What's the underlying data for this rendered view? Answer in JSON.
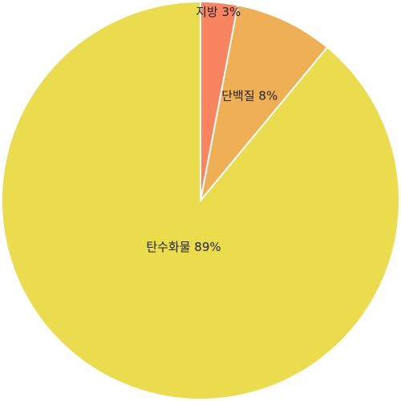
{
  "chart_data": {
    "type": "pie",
    "slices": [
      {
        "label": "탄수화물",
        "value": 89,
        "display": "탄수화물 89%",
        "color": "#ebdc4e"
      },
      {
        "label": "단백질",
        "value": 8,
        "display": "단백질 8%",
        "color": "#efb055"
      },
      {
        "label": "지방",
        "value": 3,
        "display": "지방 3%",
        "color": "#f88560"
      }
    ],
    "start": "top",
    "direction": "clockwise",
    "legend": "none"
  }
}
